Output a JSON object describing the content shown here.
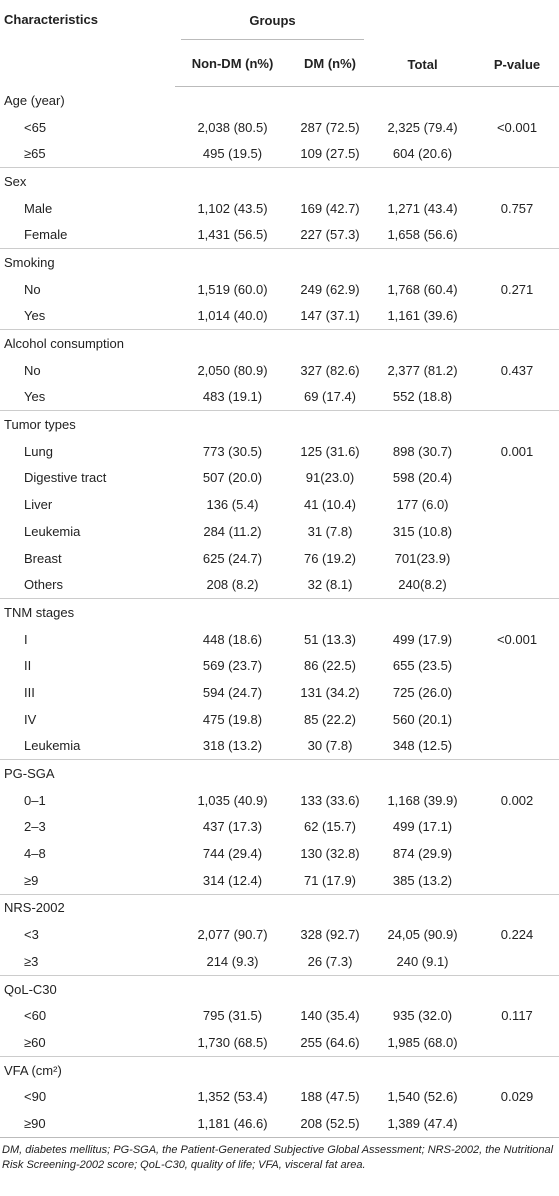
{
  "table": {
    "header": {
      "characteristics": "Characteristics",
      "groups": "Groups",
      "columns": [
        "Non-DM (n%)",
        "DM (n%)",
        "Total",
        "P-value"
      ]
    },
    "sections": [
      {
        "label": "Age (year)",
        "rows": [
          [
            "<65",
            "2,038 (80.5)",
            "287 (72.5)",
            "2,325 (79.4)",
            "<0.001"
          ],
          [
            "≥65",
            "495 (19.5)",
            "109 (27.5)",
            "604 (20.6)"
          ]
        ]
      },
      {
        "label": "Sex",
        "rows": [
          [
            "Male",
            "1,102 (43.5)",
            "169 (42.7)",
            "1,271 (43.4)",
            "0.757"
          ],
          [
            "Female",
            "1,431 (56.5)",
            "227 (57.3)",
            "1,658 (56.6)"
          ]
        ]
      },
      {
        "label": "Smoking",
        "rows": [
          [
            "No",
            "1,519 (60.0)",
            "249 (62.9)",
            "1,768 (60.4)",
            "0.271"
          ],
          [
            "Yes",
            "1,014 (40.0)",
            "147 (37.1)",
            "1,161 (39.6)"
          ]
        ]
      },
      {
        "label": "Alcohol consumption",
        "rows": [
          [
            "No",
            "2,050 (80.9)",
            "327 (82.6)",
            "2,377 (81.2)",
            "0.437"
          ],
          [
            "Yes",
            "483 (19.1)",
            "69 (17.4)",
            "552 (18.8)"
          ]
        ]
      },
      {
        "label": "Tumor types",
        "rows": [
          [
            "Lung",
            "773 (30.5)",
            "125 (31.6)",
            "898 (30.7)",
            "0.001"
          ],
          [
            "Digestive tract",
            "507 (20.0)",
            "91(23.0)",
            "598 (20.4)"
          ],
          [
            "Liver",
            "136 (5.4)",
            "41 (10.4)",
            "177 (6.0)"
          ],
          [
            "Leukemia",
            "284 (11.2)",
            "31 (7.8)",
            "315 (10.8)"
          ],
          [
            "Breast",
            "625 (24.7)",
            "76 (19.2)",
            "701(23.9)"
          ],
          [
            "Others",
            "208 (8.2)",
            "32 (8.1)",
            "240(8.2)"
          ]
        ]
      },
      {
        "label": "TNM stages",
        "rows": [
          [
            "I",
            "448 (18.6)",
            "51 (13.3)",
            "499 (17.9)",
            "<0.001"
          ],
          [
            "II",
            "569 (23.7)",
            "86 (22.5)",
            "655 (23.5)"
          ],
          [
            "III",
            "594 (24.7)",
            "131 (34.2)",
            "725 (26.0)"
          ],
          [
            "IV",
            "475 (19.8)",
            "85 (22.2)",
            "560 (20.1)"
          ],
          [
            "Leukemia",
            "318 (13.2)",
            "30 (7.8)",
            "348 (12.5)"
          ]
        ]
      },
      {
        "label": "PG-SGA",
        "rows": [
          [
            "0–1",
            "1,035 (40.9)",
            "133 (33.6)",
            "1,168 (39.9)",
            "0.002"
          ],
          [
            "2–3",
            "437 (17.3)",
            "62 (15.7)",
            "499 (17.1)"
          ],
          [
            "4–8",
            "744 (29.4)",
            "130 (32.8)",
            "874 (29.9)"
          ],
          [
            "≥9",
            "314 (12.4)",
            "71 (17.9)",
            "385 (13.2)"
          ]
        ]
      },
      {
        "label": "NRS-2002",
        "rows": [
          [
            "<3",
            "2,077 (90.7)",
            "328 (92.7)",
            "24,05 (90.9)",
            "0.224"
          ],
          [
            "≥3",
            "214 (9.3)",
            "26 (7.3)",
            "240 (9.1)"
          ]
        ]
      },
      {
        "label": "QoL-C30",
        "rows": [
          [
            "<60",
            "795 (31.5)",
            "140 (35.4)",
            "935 (32.0)",
            "0.117"
          ],
          [
            "≥60",
            "1,730 (68.5)",
            "255 (64.6)",
            "1,985 (68.0)"
          ]
        ]
      },
      {
        "label": "VFA (cm²)",
        "rows": [
          [
            "<90",
            "1,352 (53.4)",
            "188 (47.5)",
            "1,540 (52.6)",
            "0.029"
          ],
          [
            "≥90",
            "1,181 (46.6)",
            "208 (52.5)",
            "1,389 (47.4)"
          ]
        ]
      }
    ],
    "footnote": "DM, diabetes mellitus; PG-SGA, the Patient-Generated Subjective Global Assessment; NRS-2002, the Nutritional Risk Screening-2002 score; QoL-C30, quality of life; VFA, visceral fat area."
  }
}
